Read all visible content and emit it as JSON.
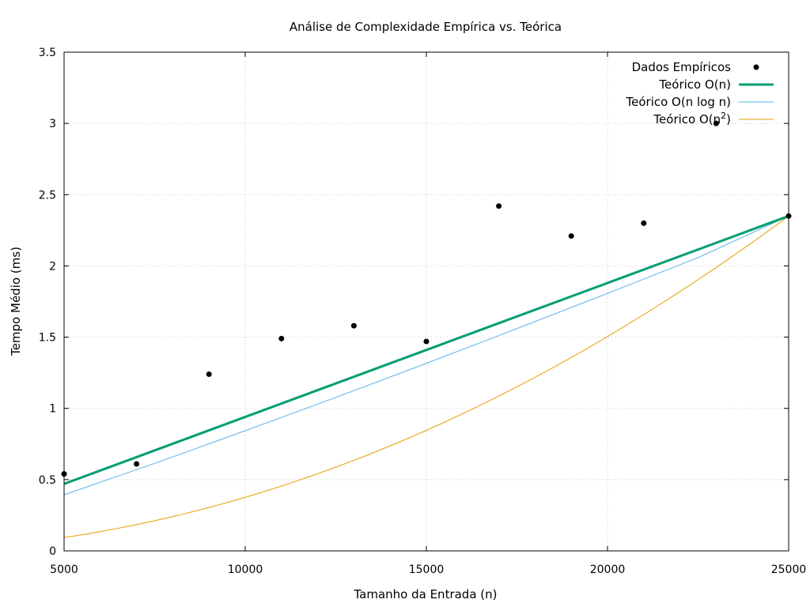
{
  "chart_data": {
    "type": "line",
    "title": "Análise de Complexidade Empírica vs. Teórica",
    "xlabel": "Tamanho da Entrada (n)",
    "ylabel": "Tempo Médio (ms)",
    "xlim": [
      5000,
      25000
    ],
    "ylim": [
      0,
      3.5
    ],
    "xticks": [
      5000,
      10000,
      15000,
      20000,
      25000
    ],
    "yticks": [
      0,
      0.5,
      1,
      1.5,
      2,
      2.5,
      3,
      3.5
    ],
    "xtick_labels": [
      "5000",
      "10000",
      "15000",
      "20000",
      "25000"
    ],
    "ytick_labels": [
      "0",
      "0.5",
      "1",
      "1.5",
      "2",
      "2.5",
      "3",
      "3.5"
    ],
    "grid": true,
    "legend_position": "top-right",
    "scatter": {
      "name": "Dados Empíricos",
      "color": "#000000",
      "x": [
        5000,
        7000,
        9000,
        11000,
        13000,
        15000,
        17000,
        19000,
        21000,
        23000,
        25000
      ],
      "y": [
        0.54,
        0.61,
        1.24,
        1.49,
        1.58,
        1.47,
        2.42,
        2.21,
        2.3,
        3.0,
        2.35
      ]
    },
    "series": [
      {
        "name": "Teórico O(n)",
        "name_main": "Teórico O(n)",
        "color": "#009e73",
        "x": [
          5000,
          25000
        ],
        "y": [
          0.47,
          2.35
        ]
      },
      {
        "name": "Teórico O(n log n)",
        "name_main": "Teórico O(n log n)",
        "color": "#56b4e9",
        "x": [
          5000,
          7500,
          10000,
          12500,
          15000,
          17500,
          20000,
          22500,
          25000
        ],
        "y": [
          0.394,
          0.614,
          0.843,
          1.077,
          1.316,
          1.56,
          1.807,
          2.058,
          2.35
        ]
      },
      {
        "name": "Teórico O(n²)",
        "name_main": "Teórico O(n",
        "name_sup": "2",
        "name_end": ")",
        "color": "#e69f00",
        "x": [
          5000,
          7500,
          10000,
          12500,
          15000,
          17500,
          20000,
          22500,
          25000
        ],
        "y": [
          0.094,
          0.2115,
          0.376,
          0.5875,
          0.846,
          1.1515,
          1.504,
          1.9035,
          2.35
        ]
      }
    ]
  }
}
